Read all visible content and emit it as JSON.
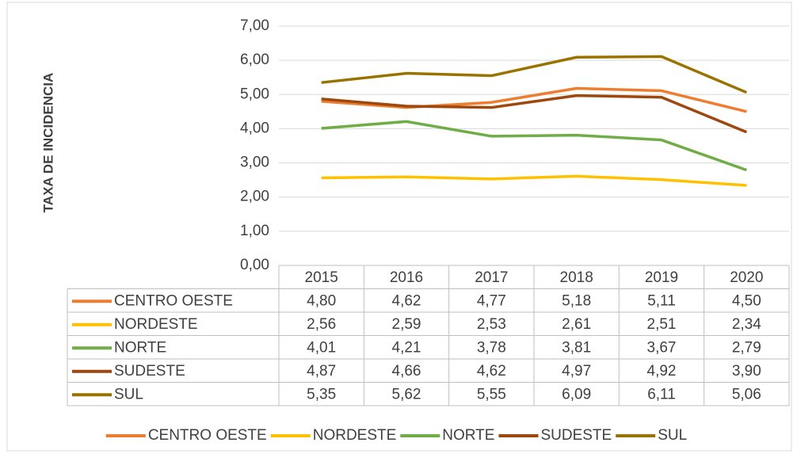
{
  "chart_data": {
    "type": "line",
    "y_label": "TAXA DE INCIDENCIA",
    "categories": [
      "2015",
      "2016",
      "2017",
      "2018",
      "2019",
      "2020"
    ],
    "series": [
      {
        "name": "CENTRO OESTE",
        "color": "#ED7D31",
        "values": [
          4.8,
          4.62,
          4.77,
          5.18,
          5.11,
          4.5
        ],
        "value_labels": [
          "4,80",
          "4,62",
          "4,77",
          "5,18",
          "5,11",
          "4,50"
        ]
      },
      {
        "name": "NORDESTE",
        "color": "#FFC000",
        "values": [
          2.56,
          2.59,
          2.53,
          2.61,
          2.51,
          2.34
        ],
        "value_labels": [
          "2,56",
          "2,59",
          "2,53",
          "2,61",
          "2,51",
          "2,34"
        ]
      },
      {
        "name": "NORTE",
        "color": "#70AD47",
        "values": [
          4.01,
          4.21,
          3.78,
          3.81,
          3.67,
          2.79
        ],
        "value_labels": [
          "4,01",
          "4,21",
          "3,78",
          "3,81",
          "3,67",
          "2,79"
        ]
      },
      {
        "name": "SUDESTE",
        "color": "#9E480E",
        "values": [
          4.87,
          4.66,
          4.62,
          4.97,
          4.92,
          3.9
        ],
        "value_labels": [
          "4,87",
          "4,66",
          "4,62",
          "4,97",
          "4,92",
          "3,90"
        ]
      },
      {
        "name": "SUL",
        "color": "#997300",
        "values": [
          5.35,
          5.62,
          5.55,
          6.09,
          6.11,
          5.06
        ],
        "value_labels": [
          "5,35",
          "5,62",
          "5,55",
          "6,09",
          "6,11",
          "5,06"
        ]
      }
    ],
    "ylim": [
      0,
      7
    ],
    "yticks": [
      {
        "value": 0,
        "label": "0,00"
      },
      {
        "value": 1,
        "label": "1,00"
      },
      {
        "value": 2,
        "label": "2,00"
      },
      {
        "value": 3,
        "label": "3,00"
      },
      {
        "value": 4,
        "label": "4,00"
      },
      {
        "value": 5,
        "label": "5,00"
      },
      {
        "value": 6,
        "label": "6,00"
      },
      {
        "value": 7,
        "label": "7,00"
      }
    ],
    "grid": true,
    "legend": "bottom",
    "data_table": true
  }
}
